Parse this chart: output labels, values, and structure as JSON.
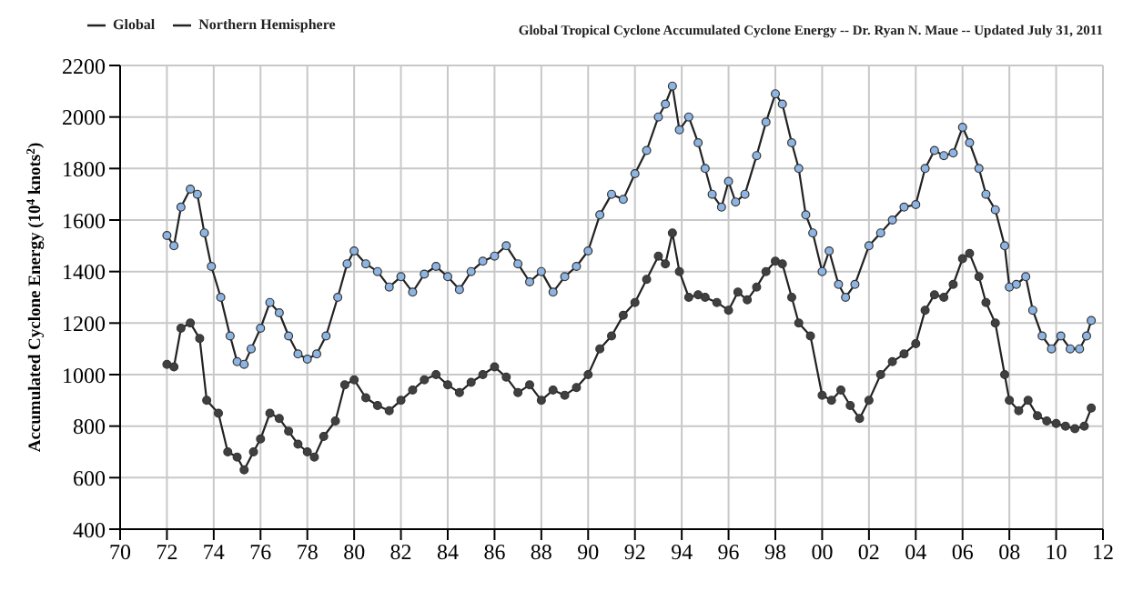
{
  "chart_data": {
    "type": "line",
    "title": "Global Tropical Cyclone Accumulated Cyclone Energy -- Dr. Ryan N. Maue -- Updated July 31, 2011",
    "ylabel": "Accumulated Cyclone Energy (10$^{4}$ knots$^{2}$)",
    "xlim": [
      1970,
      2012
    ],
    "xticks": [
      {
        "value": 1970,
        "label": "70"
      },
      {
        "value": 1972,
        "label": "72"
      },
      {
        "value": 1974,
        "label": "74"
      },
      {
        "value": 1976,
        "label": "76"
      },
      {
        "value": 1978,
        "label": "78"
      },
      {
        "value": 1980,
        "label": "80"
      },
      {
        "value": 1982,
        "label": "82"
      },
      {
        "value": 1984,
        "label": "84"
      },
      {
        "value": 1986,
        "label": "86"
      },
      {
        "value": 1988,
        "label": "88"
      },
      {
        "value": 1990,
        "label": "90"
      },
      {
        "value": 1992,
        "label": "92"
      },
      {
        "value": 1994,
        "label": "94"
      },
      {
        "value": 1996,
        "label": "96"
      },
      {
        "value": 1998,
        "label": "98"
      },
      {
        "value": 2000,
        "label": "00"
      },
      {
        "value": 2002,
        "label": "02"
      },
      {
        "value": 2004,
        "label": "04"
      },
      {
        "value": 2006,
        "label": "06"
      },
      {
        "value": 2008,
        "label": "08"
      },
      {
        "value": 2010,
        "label": "10"
      },
      {
        "value": 2012,
        "label": "12"
      }
    ],
    "ylim": [
      400,
      2200
    ],
    "yticks": [
      400,
      600,
      800,
      1000,
      1200,
      1400,
      1600,
      1800,
      2000,
      2200
    ],
    "grid": true,
    "legend": "top left",
    "marker": "circle",
    "line_style": "solid",
    "series": [
      {
        "name": "Global",
        "color": "#8db4e2",
        "x": [
          1972.0,
          1972.3,
          1972.6,
          1973.0,
          1973.3,
          1973.6,
          1973.9,
          1974.3,
          1974.7,
          1975.0,
          1975.3,
          1975.6,
          1976.0,
          1976.4,
          1976.8,
          1977.2,
          1977.6,
          1978.0,
          1978.4,
          1978.8,
          1979.3,
          1979.7,
          1980.0,
          1980.5,
          1981.0,
          1981.5,
          1982.0,
          1982.5,
          1983.0,
          1983.5,
          1984.0,
          1984.5,
          1985.0,
          1985.5,
          1986.0,
          1986.5,
          1987.0,
          1987.5,
          1988.0,
          1988.5,
          1989.0,
          1989.5,
          1990.0,
          1990.5,
          1991.0,
          1991.5,
          1992.0,
          1992.5,
          1993.0,
          1993.3,
          1993.6,
          1993.9,
          1994.3,
          1994.7,
          1995.0,
          1995.3,
          1995.7,
          1996.0,
          1996.3,
          1996.7,
          1997.2,
          1997.6,
          1998.0,
          1998.3,
          1998.7,
          1999.0,
          1999.3,
          1999.6,
          2000.0,
          2000.3,
          2000.7,
          2001.0,
          2001.4,
          2002.0,
          2002.5,
          2003.0,
          2003.5,
          2004.0,
          2004.4,
          2004.8,
          2005.2,
          2005.6,
          2006.0,
          2006.3,
          2006.7,
          2007.0,
          2007.4,
          2007.8,
          2008.0,
          2008.3,
          2008.7,
          2009.0,
          2009.4,
          2009.8,
          2010.2,
          2010.6,
          2011.0,
          2011.3,
          2011.5
        ],
        "values": [
          1540,
          1500,
          1650,
          1720,
          1700,
          1550,
          1420,
          1300,
          1150,
          1050,
          1040,
          1100,
          1180,
          1280,
          1240,
          1150,
          1080,
          1060,
          1080,
          1150,
          1300,
          1430,
          1480,
          1430,
          1400,
          1340,
          1380,
          1320,
          1390,
          1420,
          1380,
          1330,
          1400,
          1440,
          1460,
          1500,
          1430,
          1360,
          1400,
          1320,
          1380,
          1420,
          1480,
          1620,
          1700,
          1680,
          1780,
          1870,
          2000,
          2050,
          2120,
          1950,
          2000,
          1900,
          1800,
          1700,
          1650,
          1750,
          1670,
          1700,
          1850,
          1980,
          2090,
          2050,
          1900,
          1800,
          1620,
          1550,
          1400,
          1480,
          1350,
          1300,
          1350,
          1500,
          1550,
          1600,
          1650,
          1660,
          1800,
          1870,
          1850,
          1860,
          1960,
          1900,
          1800,
          1700,
          1640,
          1500,
          1340,
          1350,
          1380,
          1250,
          1150,
          1100,
          1150,
          1100,
          1100,
          1150,
          1210
        ]
      },
      {
        "name": "Northern Hemisphere",
        "color": "#404040",
        "x": [
          1972.0,
          1972.3,
          1972.6,
          1973.0,
          1973.4,
          1973.7,
          1974.2,
          1974.6,
          1975.0,
          1975.3,
          1975.7,
          1976.0,
          1976.4,
          1976.8,
          1977.2,
          1977.6,
          1978.0,
          1978.3,
          1978.7,
          1979.2,
          1979.6,
          1980.0,
          1980.5,
          1981.0,
          1981.5,
          1982.0,
          1982.5,
          1983.0,
          1983.5,
          1984.0,
          1984.5,
          1985.0,
          1985.5,
          1986.0,
          1986.5,
          1987.0,
          1987.5,
          1988.0,
          1988.5,
          1989.0,
          1989.5,
          1990.0,
          1990.5,
          1991.0,
          1991.5,
          1992.0,
          1992.5,
          1993.0,
          1993.3,
          1993.6,
          1993.9,
          1994.3,
          1994.7,
          1995.0,
          1995.5,
          1996.0,
          1996.4,
          1996.8,
          1997.2,
          1997.6,
          1998.0,
          1998.3,
          1998.7,
          1999.0,
          1999.5,
          2000.0,
          2000.4,
          2000.8,
          2001.2,
          2001.6,
          2002.0,
          2002.5,
          2003.0,
          2003.5,
          2004.0,
          2004.4,
          2004.8,
          2005.2,
          2005.6,
          2006.0,
          2006.3,
          2006.7,
          2007.0,
          2007.4,
          2007.8,
          2008.0,
          2008.4,
          2008.8,
          2009.2,
          2009.6,
          2010.0,
          2010.4,
          2010.8,
          2011.2,
          2011.5
        ],
        "values": [
          1040,
          1030,
          1180,
          1200,
          1140,
          900,
          850,
          700,
          680,
          630,
          700,
          750,
          850,
          830,
          780,
          730,
          700,
          680,
          760,
          820,
          960,
          980,
          910,
          880,
          860,
          900,
          940,
          980,
          1000,
          960,
          930,
          970,
          1000,
          1030,
          990,
          930,
          960,
          900,
          940,
          920,
          950,
          1000,
          1100,
          1150,
          1230,
          1280,
          1370,
          1460,
          1430,
          1550,
          1400,
          1300,
          1310,
          1300,
          1280,
          1250,
          1320,
          1290,
          1340,
          1400,
          1440,
          1430,
          1300,
          1200,
          1150,
          920,
          900,
          940,
          880,
          830,
          900,
          1000,
          1050,
          1080,
          1120,
          1250,
          1310,
          1300,
          1350,
          1450,
          1470,
          1380,
          1280,
          1200,
          1000,
          900,
          860,
          900,
          840,
          820,
          810,
          800,
          790,
          800,
          870
        ]
      }
    ]
  }
}
